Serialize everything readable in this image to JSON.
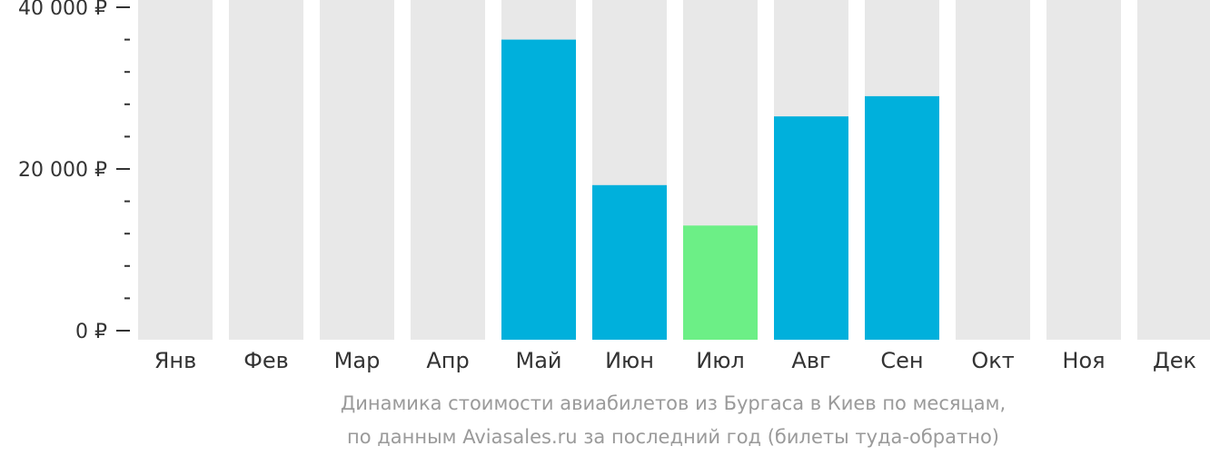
{
  "chart_data": {
    "type": "bar",
    "categories": [
      "Янв",
      "Фев",
      "Мар",
      "Апр",
      "Май",
      "Июн",
      "Июл",
      "Авг",
      "Сен",
      "Окт",
      "Ноя",
      "Дек"
    ],
    "series": [
      {
        "values": [
          null,
          null,
          null,
          null,
          36000,
          18000,
          13000,
          26500,
          29000,
          null,
          null,
          null
        ]
      }
    ],
    "ylim": [
      0,
      40000
    ],
    "yticks": [
      {
        "value": 0,
        "label": "0 ₽"
      },
      {
        "value": 20000,
        "label": "20 000 ₽"
      },
      {
        "value": 40000,
        "label": "40 000 ₽"
      }
    ],
    "minor_ticks": [
      4000,
      8000,
      12000,
      16000,
      24000,
      28000,
      32000,
      36000
    ],
    "title": "",
    "xlabel": "",
    "ylabel": "",
    "grid": false,
    "highlight_index": 6,
    "colors": {
      "bar": "#00b0dc",
      "highlight": "#6cef86",
      "background_column": "#e8e8e8",
      "axis": "#333333",
      "caption": "#9a9a9a"
    }
  },
  "caption": {
    "line1": "Динамика стоимости авиабилетов из Бургаса в Киев по месяцам,",
    "line2": "по данным Aviasales.ru за последний год (билеты туда-обратно)"
  }
}
